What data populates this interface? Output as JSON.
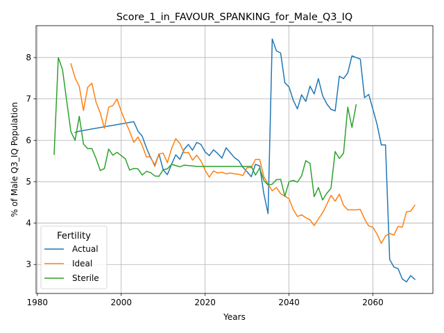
{
  "chart_data": {
    "type": "line",
    "title": "Score_1_in_FAVOUR_SPANKING_for_Male_Q3_IQ",
    "xlabel": "Years",
    "ylabel": "% of Male Q3_IQ Population",
    "xlim": [
      1979.7,
      2074.3
    ],
    "ylim": [
      2.3,
      8.77
    ],
    "xticks": [
      1980,
      2000,
      2020,
      2040,
      2060
    ],
    "yticks": [
      3,
      4,
      5,
      6,
      7,
      8
    ],
    "grid": true,
    "legend": {
      "title": "Fertility",
      "placement": "lower-left"
    },
    "series": [
      {
        "name": "Actual",
        "color": "#1f77b4",
        "points": [
          [
            1989,
            6.19
          ],
          [
            1990,
            6.22
          ],
          [
            2003,
            6.45
          ],
          [
            2004,
            6.22
          ],
          [
            2005,
            6.1
          ],
          [
            2006,
            5.82
          ],
          [
            2007,
            5.58
          ],
          [
            2008,
            5.4
          ],
          [
            2009,
            5.67
          ],
          [
            2010,
            5.29
          ],
          [
            2011,
            5.17
          ],
          [
            2012,
            5.42
          ],
          [
            2013,
            5.65
          ],
          [
            2014,
            5.54
          ],
          [
            2015,
            5.78
          ],
          [
            2016,
            5.9
          ],
          [
            2017,
            5.76
          ],
          [
            2018,
            5.95
          ],
          [
            2019,
            5.9
          ],
          [
            2020,
            5.72
          ],
          [
            2021,
            5.63
          ],
          [
            2022,
            5.77
          ],
          [
            2023,
            5.68
          ],
          [
            2024,
            5.57
          ],
          [
            2025,
            5.82
          ],
          [
            2026,
            5.7
          ],
          [
            2027,
            5.58
          ],
          [
            2028,
            5.51
          ],
          [
            2029,
            5.35
          ],
          [
            2030,
            5.24
          ],
          [
            2031,
            5.12
          ],
          [
            2032,
            5.42
          ],
          [
            2033,
            5.38
          ],
          [
            2034,
            4.71
          ],
          [
            2035,
            4.23
          ],
          [
            2036,
            8.45
          ],
          [
            2037,
            8.16
          ],
          [
            2038,
            8.11
          ],
          [
            2039,
            7.39
          ],
          [
            2040,
            7.29
          ],
          [
            2041,
            6.97
          ],
          [
            2042,
            6.76
          ],
          [
            2043,
            7.1
          ],
          [
            2044,
            6.94
          ],
          [
            2045,
            7.31
          ],
          [
            2046,
            7.12
          ],
          [
            2047,
            7.49
          ],
          [
            2048,
            7.08
          ],
          [
            2049,
            6.88
          ],
          [
            2050,
            6.75
          ],
          [
            2051,
            6.71
          ],
          [
            2052,
            7.55
          ],
          [
            2053,
            7.49
          ],
          [
            2054,
            7.63
          ],
          [
            2055,
            8.04
          ],
          [
            2056,
            8.0
          ],
          [
            2057,
            7.96
          ],
          [
            2058,
            7.03
          ],
          [
            2059,
            7.11
          ],
          [
            2060,
            6.75
          ],
          [
            2061,
            6.38
          ],
          [
            2062,
            5.89
          ],
          [
            2063,
            5.89
          ],
          [
            2064,
            3.12
          ],
          [
            2065,
            2.94
          ],
          [
            2066,
            2.9
          ],
          [
            2067,
            2.65
          ],
          [
            2068,
            2.58
          ],
          [
            2069,
            2.73
          ],
          [
            2070,
            2.64
          ]
        ]
      },
      {
        "name": "Ideal",
        "color": "#ff7f0e",
        "points": [
          [
            1988,
            7.85
          ],
          [
            1989,
            7.51
          ],
          [
            1990,
            7.3
          ],
          [
            1991,
            6.72
          ],
          [
            1992,
            7.28
          ],
          [
            1993,
            7.38
          ],
          [
            1994,
            6.92
          ],
          [
            1995,
            6.66
          ],
          [
            1996,
            6.29
          ],
          [
            1997,
            6.8
          ],
          [
            1998,
            6.84
          ],
          [
            1999,
            7.0
          ],
          [
            2000,
            6.7
          ],
          [
            2001,
            6.45
          ],
          [
            2002,
            6.22
          ],
          [
            2003,
            5.95
          ],
          [
            2004,
            6.08
          ],
          [
            2005,
            5.88
          ],
          [
            2006,
            5.6
          ],
          [
            2007,
            5.6
          ],
          [
            2008,
            5.37
          ],
          [
            2009,
            5.67
          ],
          [
            2010,
            5.69
          ],
          [
            2011,
            5.46
          ],
          [
            2012,
            5.8
          ],
          [
            2013,
            6.04
          ],
          [
            2014,
            5.92
          ],
          [
            2015,
            5.7
          ],
          [
            2016,
            5.71
          ],
          [
            2017,
            5.52
          ],
          [
            2018,
            5.64
          ],
          [
            2019,
            5.5
          ],
          [
            2020,
            5.28
          ],
          [
            2021,
            5.11
          ],
          [
            2022,
            5.26
          ],
          [
            2023,
            5.21
          ],
          [
            2024,
            5.23
          ],
          [
            2025,
            5.19
          ],
          [
            2026,
            5.21
          ],
          [
            2027,
            5.19
          ],
          [
            2028,
            5.18
          ],
          [
            2029,
            5.15
          ],
          [
            2030,
            5.34
          ],
          [
            2031,
            5.34
          ],
          [
            2032,
            5.54
          ],
          [
            2033,
            5.54
          ],
          [
            2034,
            5.12
          ],
          [
            2035,
            4.94
          ],
          [
            2036,
            4.78
          ],
          [
            2037,
            4.86
          ],
          [
            2038,
            4.71
          ],
          [
            2039,
            4.65
          ],
          [
            2040,
            4.59
          ],
          [
            2041,
            4.33
          ],
          [
            2042,
            4.16
          ],
          [
            2043,
            4.2
          ],
          [
            2044,
            4.13
          ],
          [
            2045,
            4.08
          ],
          [
            2046,
            3.94
          ],
          [
            2047,
            4.1
          ],
          [
            2048,
            4.25
          ],
          [
            2049,
            4.45
          ],
          [
            2050,
            4.67
          ],
          [
            2051,
            4.53
          ],
          [
            2052,
            4.7
          ],
          [
            2053,
            4.43
          ],
          [
            2054,
            4.32
          ],
          [
            2055,
            4.32
          ],
          [
            2056,
            4.32
          ],
          [
            2057,
            4.33
          ],
          [
            2058,
            4.1
          ],
          [
            2059,
            3.93
          ],
          [
            2060,
            3.9
          ],
          [
            2061,
            3.73
          ],
          [
            2062,
            3.51
          ],
          [
            2063,
            3.69
          ],
          [
            2064,
            3.75
          ],
          [
            2065,
            3.71
          ],
          [
            2066,
            3.92
          ],
          [
            2067,
            3.9
          ],
          [
            2068,
            4.27
          ],
          [
            2069,
            4.29
          ],
          [
            2070,
            4.43
          ]
        ]
      },
      {
        "name": "Sterile",
        "color": "#2ca02c",
        "points": [
          [
            1984,
            5.66
          ],
          [
            1985,
            8.0
          ],
          [
            1986,
            7.71
          ],
          [
            1987,
            6.95
          ],
          [
            1988,
            6.21
          ],
          [
            1989,
            6.0
          ],
          [
            1990,
            6.58
          ],
          [
            1991,
            5.91
          ],
          [
            1992,
            5.8
          ],
          [
            1993,
            5.8
          ],
          [
            1994,
            5.56
          ],
          [
            1995,
            5.27
          ],
          [
            1996,
            5.32
          ],
          [
            1997,
            5.79
          ],
          [
            1998,
            5.64
          ],
          [
            1999,
            5.71
          ],
          [
            2000,
            5.63
          ],
          [
            2001,
            5.55
          ],
          [
            2002,
            5.28
          ],
          [
            2003,
            5.32
          ],
          [
            2004,
            5.31
          ],
          [
            2005,
            5.16
          ],
          [
            2006,
            5.25
          ],
          [
            2007,
            5.22
          ],
          [
            2008,
            5.14
          ],
          [
            2009,
            5.13
          ],
          [
            2010,
            5.29
          ],
          [
            2011,
            5.31
          ],
          [
            2012,
            5.42
          ],
          [
            2013,
            5.39
          ],
          [
            2014,
            5.36
          ],
          [
            2015,
            5.4
          ],
          [
            2016,
            5.39
          ],
          [
            2017,
            5.38
          ],
          [
            2018,
            5.37
          ],
          [
            2019,
            5.37
          ],
          [
            2020,
            5.37
          ],
          [
            2021,
            5.37
          ],
          [
            2022,
            5.37
          ],
          [
            2023,
            5.37
          ],
          [
            2024,
            5.37
          ],
          [
            2025,
            5.37
          ],
          [
            2026,
            5.37
          ],
          [
            2027,
            5.37
          ],
          [
            2028,
            5.37
          ],
          [
            2029,
            5.37
          ],
          [
            2030,
            5.37
          ],
          [
            2031,
            5.37
          ],
          [
            2032,
            5.16
          ],
          [
            2033,
            5.33
          ],
          [
            2034,
            5.03
          ],
          [
            2035,
            4.92
          ],
          [
            2036,
            4.94
          ],
          [
            2037,
            5.05
          ],
          [
            2038,
            5.06
          ],
          [
            2039,
            4.65
          ],
          [
            2040,
            5.0
          ],
          [
            2041,
            5.03
          ],
          [
            2042,
            4.99
          ],
          [
            2043,
            5.14
          ],
          [
            2044,
            5.51
          ],
          [
            2045,
            5.44
          ],
          [
            2046,
            4.64
          ],
          [
            2047,
            4.86
          ],
          [
            2048,
            4.56
          ],
          [
            2049,
            4.72
          ],
          [
            2050,
            4.84
          ],
          [
            2051,
            5.73
          ],
          [
            2052,
            5.56
          ],
          [
            2053,
            5.69
          ],
          [
            2054,
            6.8
          ],
          [
            2055,
            6.31
          ],
          [
            2056,
            6.86
          ]
        ]
      }
    ]
  }
}
